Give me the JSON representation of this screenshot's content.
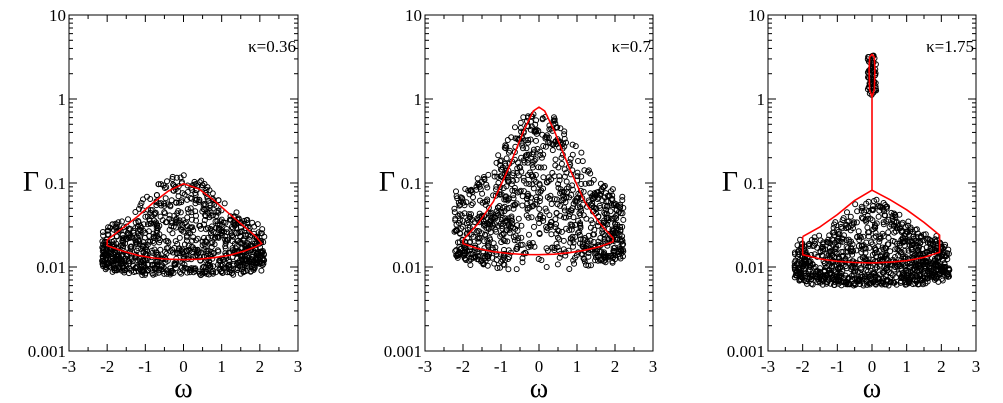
{
  "chart_data": [
    {
      "type": "scatter",
      "annotation": "κ=0.36",
      "xlabel": "ω",
      "ylabel": "Γ",
      "xlim": [
        -3,
        3
      ],
      "ylim": [
        0.001,
        10
      ],
      "yscale": "log",
      "x_ticks": [
        "-3",
        "-2",
        "-1",
        "0",
        "1",
        "2",
        "3"
      ],
      "y_ticks": [
        "0.001",
        "0.01",
        "0.1",
        "1",
        "10"
      ],
      "grid": false,
      "points": {
        "count": 1000,
        "x_range": [
          -2.2,
          2.2
        ],
        "y_range": [
          0.008,
          0.13
        ],
        "marker": "open-circle",
        "color": "#000000"
      },
      "boundary": {
        "color": "#ff0000",
        "upper": [
          [
            -2.0,
            0.021
          ],
          [
            -1.6,
            0.029
          ],
          [
            -1.2,
            0.04
          ],
          [
            -0.8,
            0.058
          ],
          [
            -0.4,
            0.08
          ],
          [
            0.0,
            0.098
          ],
          [
            0.4,
            0.085
          ],
          [
            0.8,
            0.062
          ],
          [
            1.2,
            0.043
          ],
          [
            1.6,
            0.03
          ],
          [
            1.9,
            0.023
          ],
          [
            2.05,
            0.019
          ]
        ],
        "lower": [
          [
            -2.0,
            0.018
          ],
          [
            -1.6,
            0.0155
          ],
          [
            -1.2,
            0.0138
          ],
          [
            -0.8,
            0.0128
          ],
          [
            -0.4,
            0.0124
          ],
          [
            0.0,
            0.0122
          ],
          [
            0.4,
            0.0124
          ],
          [
            0.8,
            0.0129
          ],
          [
            1.2,
            0.0138
          ],
          [
            1.6,
            0.0155
          ],
          [
            1.9,
            0.0175
          ],
          [
            2.05,
            0.019
          ]
        ]
      }
    },
    {
      "type": "scatter",
      "annotation": "κ=0.7",
      "xlabel": "ω",
      "ylabel": "Γ",
      "xlim": [
        -3,
        3
      ],
      "ylim": [
        0.001,
        10
      ],
      "yscale": "log",
      "x_ticks": [
        "-3",
        "-2",
        "-1",
        "0",
        "1",
        "2",
        "3"
      ],
      "y_ticks": [
        "0.001",
        "0.01",
        "0.1",
        "1",
        "10"
      ],
      "grid": false,
      "points": {
        "count": 1000,
        "x_range": [
          -2.3,
          2.3
        ],
        "y_range": [
          0.009,
          0.75
        ],
        "marker": "open-circle",
        "color": "#000000"
      },
      "boundary": {
        "color": "#ff0000",
        "upper": [
          [
            -2.0,
            0.021
          ],
          [
            -1.6,
            0.033
          ],
          [
            -1.2,
            0.06
          ],
          [
            -0.8,
            0.15
          ],
          [
            -0.4,
            0.42
          ],
          [
            -0.15,
            0.72
          ],
          [
            0.0,
            0.8
          ],
          [
            0.15,
            0.72
          ],
          [
            0.4,
            0.42
          ],
          [
            0.8,
            0.15
          ],
          [
            1.2,
            0.06
          ],
          [
            1.6,
            0.033
          ],
          [
            1.95,
            0.022
          ]
        ],
        "lower": [
          [
            -2.0,
            0.019
          ],
          [
            -1.6,
            0.0165
          ],
          [
            -1.2,
            0.0152
          ],
          [
            -0.8,
            0.0145
          ],
          [
            -0.4,
            0.0141
          ],
          [
            0.0,
            0.014
          ],
          [
            0.4,
            0.0142
          ],
          [
            0.8,
            0.0148
          ],
          [
            1.2,
            0.0158
          ],
          [
            1.6,
            0.0175
          ],
          [
            1.95,
            0.02
          ]
        ]
      }
    },
    {
      "type": "scatter",
      "annotation": "κ=1.75",
      "xlabel": "ω",
      "ylabel": "Γ",
      "xlim": [
        -3,
        3
      ],
      "ylim": [
        0.001,
        10
      ],
      "yscale": "log",
      "x_ticks": [
        "-3",
        "-2",
        "-1",
        "0",
        "1",
        "2",
        "3"
      ],
      "y_ticks": [
        "0.001",
        "0.01",
        "0.1",
        "1",
        "10"
      ],
      "grid": false,
      "points": {
        "count": 1000,
        "x_range": [
          -2.3,
          2.3
        ],
        "y_range": [
          0.006,
          0.065
        ],
        "marker": "open-circle",
        "color": "#000000"
      },
      "outliers": {
        "count": 60,
        "x_range": [
          -0.12,
          0.12
        ],
        "y_range": [
          1.1,
          3.3
        ]
      },
      "boundary": {
        "color": "#ff0000",
        "upper": [
          [
            -2.0,
            0.023
          ],
          [
            -1.5,
            0.03
          ],
          [
            -1.0,
            0.042
          ],
          [
            -0.5,
            0.062
          ],
          [
            0.0,
            0.082
          ],
          [
            0.5,
            0.064
          ],
          [
            1.0,
            0.048
          ],
          [
            1.5,
            0.034
          ],
          [
            1.95,
            0.024
          ]
        ],
        "lower": [
          [
            -2.0,
            0.014
          ],
          [
            -1.5,
            0.0125
          ],
          [
            -1.0,
            0.0117
          ],
          [
            -0.5,
            0.0113
          ],
          [
            0.0,
            0.0112
          ],
          [
            0.5,
            0.0114
          ],
          [
            1.0,
            0.0119
          ],
          [
            1.5,
            0.013
          ],
          [
            1.95,
            0.015
          ]
        ],
        "stem": [
          [
            0.0,
            0.082
          ],
          [
            0.0,
            1.05
          ]
        ],
        "loop": [
          [
            0.0,
            1.05
          ],
          [
            0.07,
            1.3
          ],
          [
            0.085,
            2.2
          ],
          [
            0.07,
            3.15
          ],
          [
            0.0,
            3.4
          ],
          [
            -0.07,
            3.15
          ],
          [
            -0.085,
            2.2
          ],
          [
            -0.07,
            1.3
          ],
          [
            0.0,
            1.05
          ]
        ]
      }
    }
  ]
}
